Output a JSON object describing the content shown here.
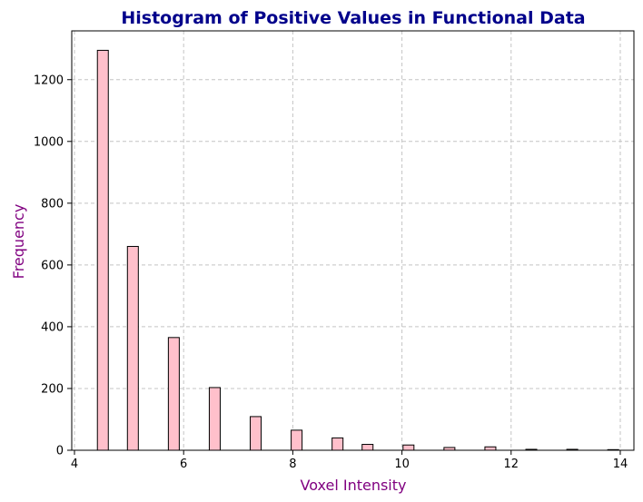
{
  "chart_data": {
    "type": "bar",
    "title": "Histogram of Positive Values in Functional Data",
    "xlabel": "Voxel Intensity",
    "ylabel": "Frequency",
    "xlim": [
      3.95,
      14.25
    ],
    "ylim": [
      0,
      1358
    ],
    "x_ticks": [
      4,
      6,
      8,
      10,
      12,
      14
    ],
    "y_ticks": [
      0,
      200,
      400,
      600,
      800,
      1000,
      1200
    ],
    "grid": true,
    "bar_width": 0.2,
    "x": [
      4.52,
      5.07,
      5.82,
      6.57,
      7.32,
      8.07,
      8.82,
      9.37,
      10.12,
      10.87,
      11.62,
      12.37,
      13.12,
      13.87
    ],
    "values": [
      1295,
      660,
      365,
      203,
      109,
      65,
      40,
      19,
      17,
      9,
      11,
      3,
      3,
      2
    ],
    "colors": {
      "bar_fill": "#ffc0cb",
      "bar_edge": "#000000",
      "title": "#00008b",
      "axis_label": "#800080"
    }
  }
}
